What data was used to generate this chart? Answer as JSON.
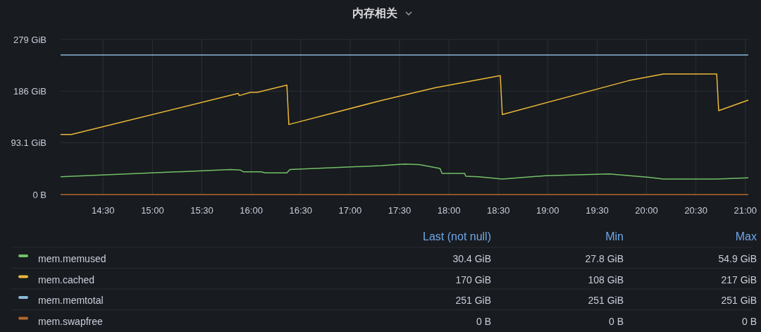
{
  "chart_data": {
    "type": "line",
    "title": "内存相关",
    "xlim": [
      14.07,
      21.03
    ],
    "ylim": [
      0,
      279
    ],
    "xticks": [
      {
        "value": 14.5,
        "label": "14:30"
      },
      {
        "value": 15,
        "label": "15:00"
      },
      {
        "value": 15.5,
        "label": "15:30"
      },
      {
        "value": 16,
        "label": "16:00"
      },
      {
        "value": 16.5,
        "label": "16:30"
      },
      {
        "value": 17,
        "label": "17:00"
      },
      {
        "value": 17.5,
        "label": "17:30"
      },
      {
        "value": 18,
        "label": "18:00"
      },
      {
        "value": 18.5,
        "label": "18:30"
      },
      {
        "value": 19,
        "label": "19:00"
      },
      {
        "value": 19.5,
        "label": "19:30"
      },
      {
        "value": 20,
        "label": "20:00"
      },
      {
        "value": 20.5,
        "label": "20:30"
      },
      {
        "value": 21,
        "label": "21:00"
      }
    ],
    "yticks": [
      {
        "value": 0,
        "label": "0 B"
      },
      {
        "value": 93.1,
        "label": "93.1 GiB"
      },
      {
        "value": 186,
        "label": "186 GiB"
      },
      {
        "value": 279,
        "label": "279 GiB"
      }
    ],
    "grid": true,
    "legend": "bottom",
    "line_style": "solid",
    "series": [
      {
        "name": "mem.memused",
        "color": "#73bf69",
        "x": [
          14.07,
          15.79,
          15.89,
          15.92,
          16.1,
          16.14,
          16.36,
          16.39,
          17.31,
          17.55,
          17.7,
          17.91,
          17.93,
          18.16,
          18.17,
          18.3,
          18.54,
          18.98,
          19.62,
          20.02,
          20.17,
          20.71,
          21.03
        ],
        "values": [
          32,
          45,
          44,
          41,
          41,
          39,
          39,
          45,
          52,
          55,
          54,
          47,
          38,
          38,
          33,
          32,
          28,
          34,
          37,
          31,
          28,
          28,
          30
        ]
      },
      {
        "name": "mem.cached",
        "color": "#eab839",
        "x": [
          14.07,
          14.18,
          15.866,
          15.88,
          15.99,
          16.06,
          16.36,
          16.38,
          17.31,
          17.86,
          18.52,
          18.54,
          19.82,
          20.17,
          20.71,
          20.73,
          21.03
        ],
        "values": [
          108,
          108,
          182,
          178,
          184,
          184,
          197,
          126,
          169,
          192,
          214,
          144,
          205,
          217,
          217,
          151,
          170
        ]
      },
      {
        "name": "mem.memtotal",
        "color": "#8ab8d8",
        "x": [
          14.07,
          21.03
        ],
        "values": [
          251,
          251
        ]
      },
      {
        "name": "mem.swapfree",
        "color": "#b0662d",
        "x": [
          14.07,
          21.03
        ],
        "values": [
          0,
          0
        ]
      }
    ],
    "annotations": [
      "Last (not null)",
      "Min",
      "Max",
      "30.4 GiB",
      "27.8 GiB",
      "54.9 GiB",
      "170 GiB",
      "108 GiB",
      "217 GiB",
      "251 GiB",
      "251 GiB",
      "251 GiB",
      "0 B",
      "0 B",
      "0 B"
    ]
  }
}
